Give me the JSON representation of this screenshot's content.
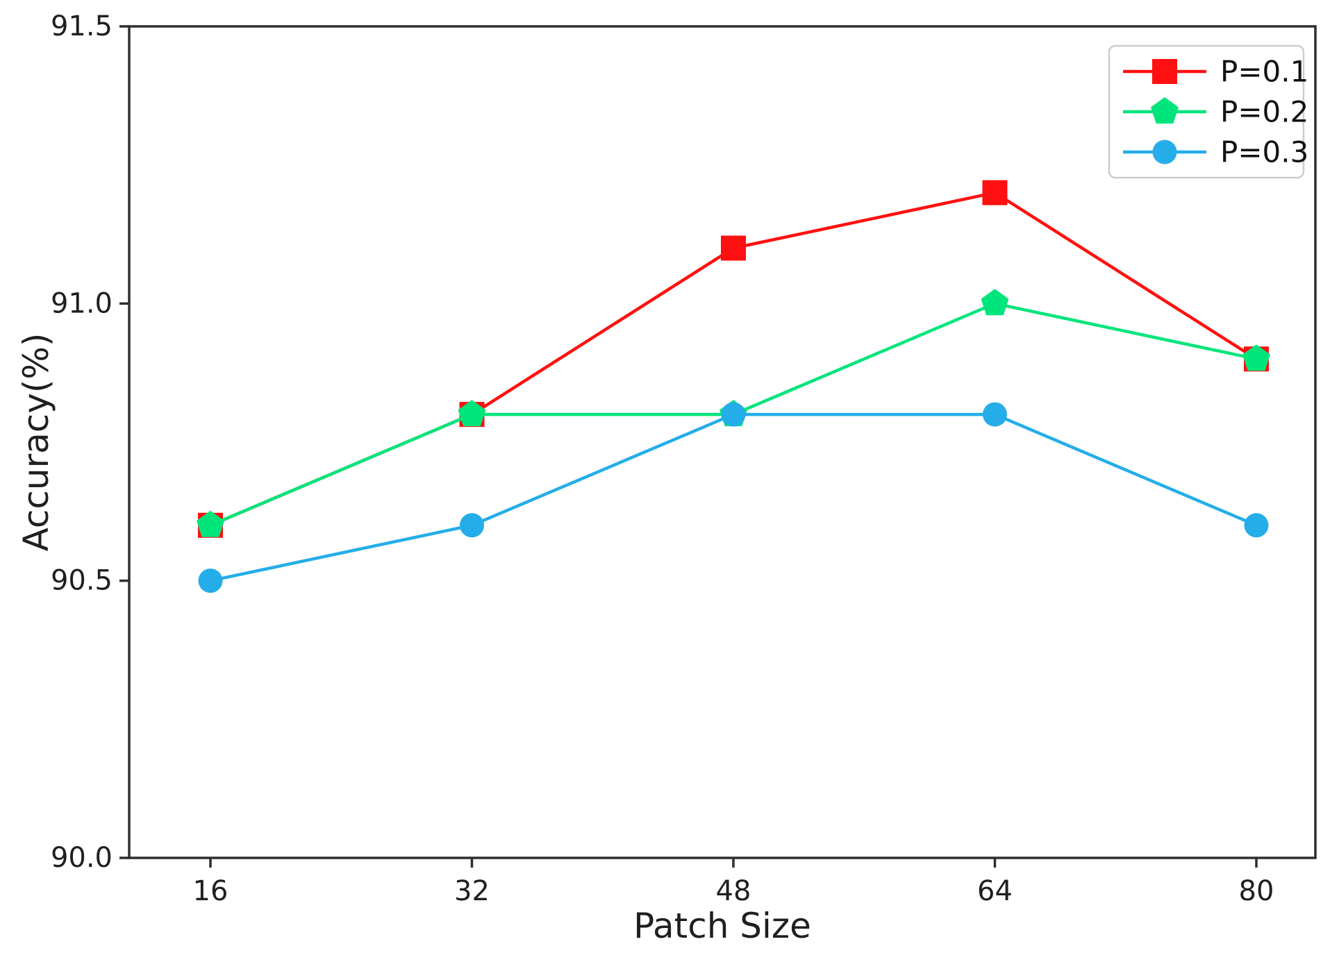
{
  "figure": {
    "background": "#ffffff",
    "text_color": "#1f1f1f",
    "spine_color": "#2e2e2e",
    "legend_border_color": "#cccccc",
    "legend_background": "#ffffff"
  },
  "chart_data": {
    "type": "line",
    "title": "",
    "xlabel": "Patch Size",
    "ylabel": "Accuracy(%)",
    "x": [
      16,
      32,
      48,
      64,
      80
    ],
    "xtick_labels": [
      "16",
      "32",
      "48",
      "64",
      "80"
    ],
    "ytick_values": [
      90.0,
      90.5,
      91.0,
      91.5
    ],
    "ytick_labels": [
      "90.0",
      "90.5",
      "91.0",
      "91.5"
    ],
    "ylim": [
      90.0,
      91.5
    ],
    "grid": false,
    "legend_position": "upper right",
    "series": [
      {
        "name": "P=0.1",
        "marker": "square",
        "color": "#ff1010",
        "values": [
          90.6,
          90.8,
          91.1,
          91.2,
          90.9
        ]
      },
      {
        "name": "P=0.2",
        "marker": "pentagon",
        "color": "#00e57b",
        "values": [
          90.6,
          90.8,
          90.8,
          91.0,
          90.9
        ]
      },
      {
        "name": "P=0.3",
        "marker": "circle",
        "color": "#24ade9",
        "values": [
          90.5,
          90.6,
          90.8,
          90.8,
          90.6
        ]
      }
    ]
  }
}
